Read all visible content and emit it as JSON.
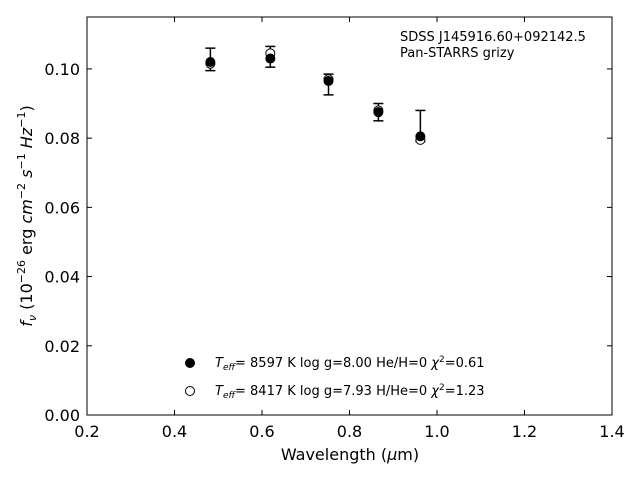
{
  "chart_data": {
    "type": "scatter",
    "title": "",
    "xlabel": "Wavelength (μm)",
    "ylabel": "f_ν (10^-26 erg cm^-2 s^-1 Hz^-1)",
    "xlim": [
      0.2,
      1.4
    ],
    "ylim": [
      0.0,
      0.115
    ],
    "xticks": [
      "0.2",
      "0.4",
      "0.6",
      "0.8",
      "1.0",
      "1.2",
      "1.4"
    ],
    "yticks": [
      "0.00",
      "0.02",
      "0.04",
      "0.06",
      "0.08",
      "0.10"
    ],
    "grid": false,
    "legend_position": "bottom-center",
    "annotation": [
      "SDSS J145916.60+092142.5",
      "Pan-STARRS grizy"
    ],
    "observed": {
      "x": [
        0.482,
        0.619,
        0.752,
        0.866,
        0.962
      ],
      "y": [
        0.1025,
        0.1035,
        0.0965,
        0.0875,
        0.081
      ],
      "err_low": [
        0.003,
        0.003,
        0.004,
        0.0025,
        0.002
      ],
      "err_high": [
        0.0035,
        0.003,
        0.002,
        0.0025,
        0.007
      ]
    },
    "series": [
      {
        "name": "T_eff= 8597 K log g=8.00 He/H=0 χ²=0.61",
        "marker": "filled-circle",
        "x": [
          0.482,
          0.619,
          0.752,
          0.866,
          0.962
        ],
        "y": [
          0.102,
          0.103,
          0.0965,
          0.0875,
          0.0805
        ]
      },
      {
        "name": "T_eff= 8417 K log g=7.93 H/He=0 χ²=1.23",
        "marker": "open-circle",
        "x": [
          0.482,
          0.619,
          0.752,
          0.866,
          0.962
        ],
        "y": [
          0.1015,
          0.1045,
          0.097,
          0.088,
          0.0795
        ]
      }
    ],
    "colors": {
      "marker": "#000000",
      "axes": "#000000"
    }
  }
}
